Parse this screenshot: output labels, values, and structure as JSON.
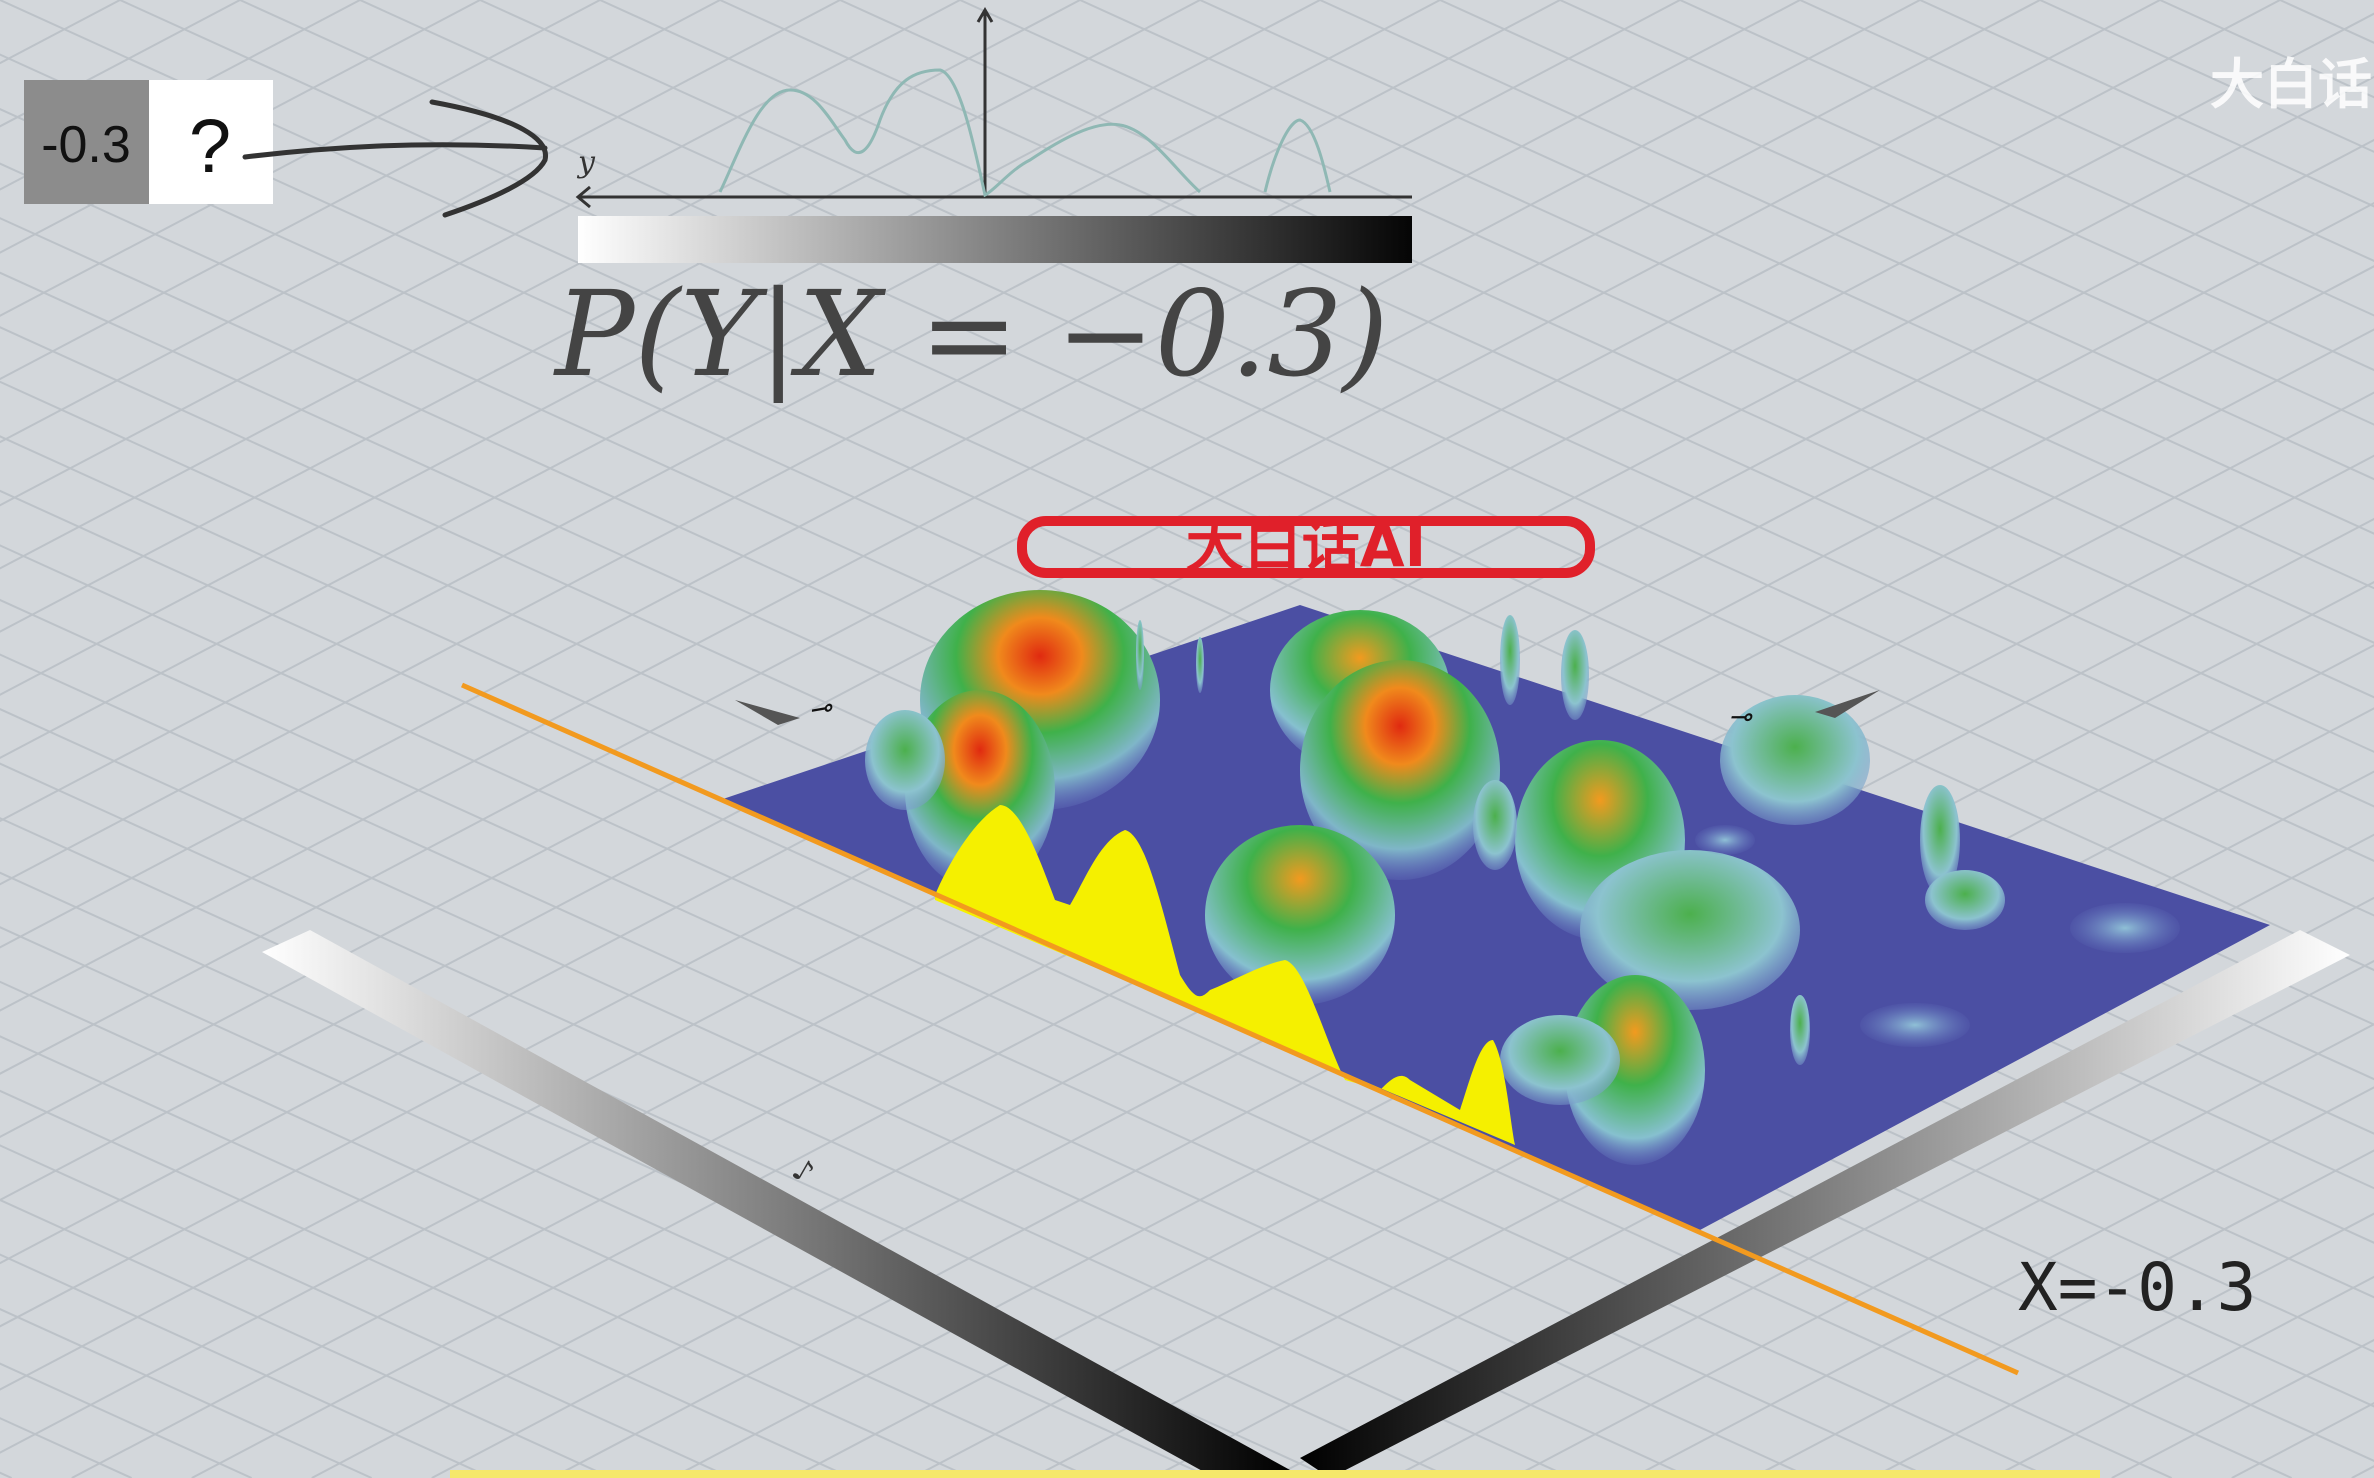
{
  "input_box": {
    "value": "-0.3",
    "unknown": "?"
  },
  "curve_axis_label": "y",
  "formula": {
    "text": "P(Y|X = −0.3)"
  },
  "logo": {
    "text": "大白话AI"
  },
  "corner_watermark": "大白话",
  "slice_label": "X=-0.3",
  "colors": {
    "background": "#d3d7db",
    "grid": "#bcc2c8",
    "plane": "#4b4fa3",
    "slice_fill": "#f5f000",
    "slice_line": "#f29a1f",
    "curve": "#8fb8b4",
    "logo": "#e0202a"
  },
  "icons": [
    "curved-arrow-icon",
    "direction-arrow-icon"
  ]
}
